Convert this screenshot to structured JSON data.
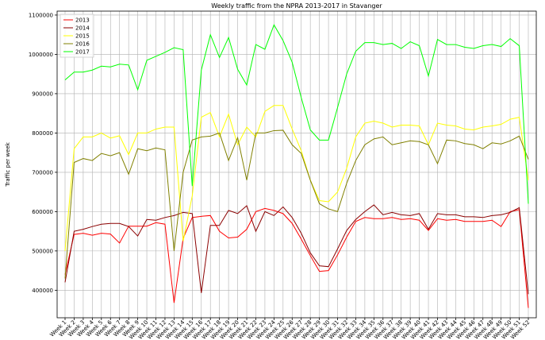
{
  "chart_data": {
    "type": "line",
    "title": "Weekly traffic from the NPRA 2013-2017 in Stavanger",
    "y_label": "Traffic per week",
    "categories": [
      "Week 1",
      "Week 2",
      "Week 3",
      "Week 4",
      "Week 5",
      "Week 6",
      "Week 7",
      "Week 8",
      "Week 9",
      "Week 10",
      "Week 11",
      "Week 12",
      "Week 13",
      "Week 14",
      "Week 15",
      "Week 16",
      "Week 17",
      "Week 18",
      "Week 19",
      "Week 20",
      "Week 21",
      "Week 22",
      "Week 23",
      "Week 24",
      "Week 25",
      "Week 26",
      "Week 27",
      "Week 28",
      "Week 29",
      "Week 30",
      "Week 31",
      "Week 32",
      "Week 33",
      "Week 34",
      "Week 35",
      "Week 36",
      "Week 37",
      "Week 38",
      "Week 39",
      "Week 40",
      "Week 41",
      "Week 42",
      "Week 43",
      "Week 44",
      "Week 45",
      "Week 46",
      "Week 47",
      "Week 48",
      "Week 49",
      "Week 50",
      "Week 51",
      "Week 52"
    ],
    "series": [
      {
        "name": "2013",
        "color": "#ff0000",
        "values": [
          440000,
          542000,
          545000,
          540000,
          545000,
          543000,
          520000,
          563000,
          563000,
          563000,
          572000,
          568000,
          368000,
          532000,
          585000,
          588000,
          590000,
          550000,
          533000,
          535000,
          555000,
          600000,
          608000,
          603000,
          595000,
          570000,
          530000,
          488000,
          448000,
          450000,
          490000,
          535000,
          575000,
          585000,
          582000,
          582000,
          585000,
          580000,
          582000,
          578000,
          552000,
          582000,
          578000,
          580000,
          575000,
          575000,
          575000,
          578000,
          562000,
          600000,
          605000,
          355000
        ]
      },
      {
        "name": "2014",
        "color": "#8b0000",
        "values": [
          420000,
          550000,
          555000,
          562000,
          568000,
          570000,
          570000,
          562000,
          538000,
          580000,
          578000,
          585000,
          590000,
          598000,
          595000,
          393000,
          565000,
          565000,
          603000,
          595000,
          615000,
          550000,
          600000,
          590000,
          612000,
          585000,
          545000,
          495000,
          462000,
          460000,
          505000,
          552000,
          580000,
          600000,
          617000,
          592000,
          598000,
          592000,
          590000,
          595000,
          555000,
          595000,
          592000,
          592000,
          587000,
          587000,
          585000,
          590000,
          592000,
          598000,
          610000,
          390000
        ]
      },
      {
        "name": "2015",
        "color": "#ffff00",
        "values": [
          500000,
          760000,
          790000,
          790000,
          800000,
          787000,
          793000,
          745000,
          800000,
          800000,
          810000,
          815000,
          815000,
          525000,
          640000,
          840000,
          852000,
          790000,
          848000,
          770000,
          815000,
          790000,
          855000,
          870000,
          870000,
          810000,
          755000,
          680000,
          628000,
          625000,
          650000,
          710000,
          790000,
          825000,
          830000,
          825000,
          815000,
          820000,
          820000,
          818000,
          770000,
          825000,
          820000,
          818000,
          810000,
          808000,
          815000,
          818000,
          822000,
          835000,
          840000,
          680000
        ]
      },
      {
        "name": "2016",
        "color": "#808000",
        "values": [
          430000,
          725000,
          735000,
          730000,
          748000,
          742000,
          750000,
          695000,
          760000,
          755000,
          762000,
          757000,
          500000,
          700000,
          782000,
          790000,
          792000,
          800000,
          730000,
          788000,
          680000,
          800000,
          800000,
          806000,
          807000,
          770000,
          748000,
          680000,
          620000,
          607000,
          600000,
          672000,
          730000,
          770000,
          785000,
          790000,
          770000,
          775000,
          780000,
          778000,
          770000,
          722000,
          782000,
          780000,
          773000,
          770000,
          760000,
          775000,
          772000,
          780000,
          792000,
          733000
        ]
      },
      {
        "name": "2017",
        "color": "#00ff00",
        "values": [
          935000,
          955000,
          955000,
          960000,
          970000,
          968000,
          975000,
          973000,
          910000,
          985000,
          995000,
          1005000,
          1017000,
          1012000,
          665000,
          960000,
          1050000,
          992000,
          1043000,
          962000,
          922000,
          1025000,
          1013000,
          1075000,
          1035000,
          980000,
          890000,
          808000,
          782000,
          782000,
          865000,
          950000,
          1008000,
          1030000,
          1030000,
          1025000,
          1028000,
          1015000,
          1032000,
          1022000,
          945000,
          1038000,
          1025000,
          1025000,
          1018000,
          1015000,
          1022000,
          1025000,
          1020000,
          1040000,
          1022000,
          620000
        ]
      }
    ],
    "ylim": [
      330000,
      1110000
    ],
    "yticks": [
      400000,
      500000,
      600000,
      700000,
      800000,
      900000,
      1000000,
      1100000
    ],
    "grid": true,
    "legend": "upper left"
  }
}
